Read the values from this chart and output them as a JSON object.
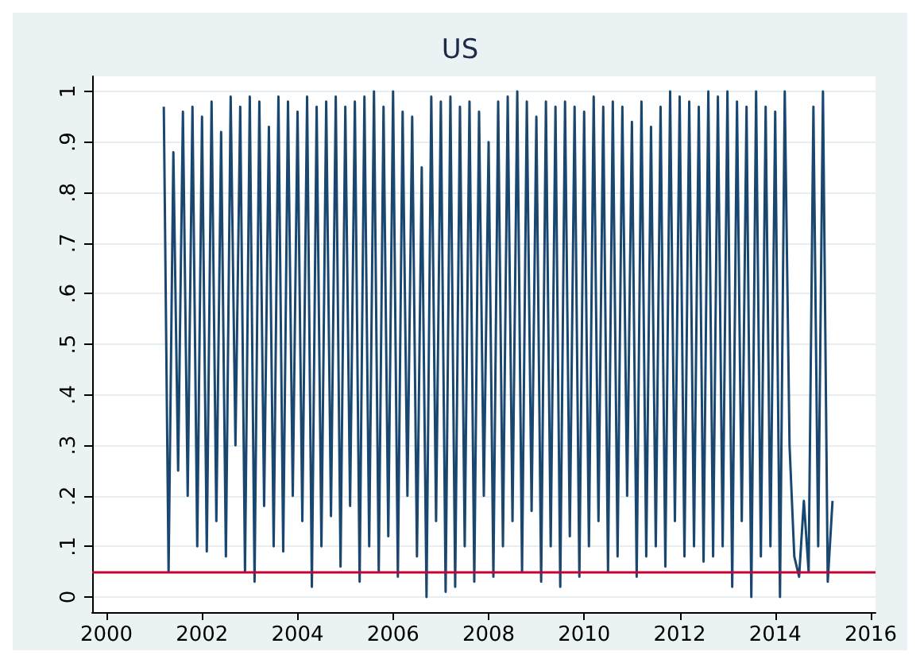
{
  "chart_data": {
    "type": "line",
    "title": "US",
    "x": [
      2001.2,
      2001.3,
      2001.4,
      2001.5,
      2001.6,
      2001.7,
      2001.8,
      2001.9,
      2002.0,
      2002.1,
      2002.2,
      2002.3,
      2002.4,
      2002.5,
      2002.6,
      2002.7,
      2002.8,
      2002.9,
      2003.0,
      2003.1,
      2003.2,
      2003.3,
      2003.4,
      2003.5,
      2003.6,
      2003.7,
      2003.8,
      2003.9,
      2004.0,
      2004.1,
      2004.2,
      2004.3,
      2004.4,
      2004.5,
      2004.6,
      2004.7,
      2004.8,
      2004.9,
      2005.0,
      2005.1,
      2005.2,
      2005.3,
      2005.4,
      2005.5,
      2005.6,
      2005.7,
      2005.8,
      2005.9,
      2006.0,
      2006.1,
      2006.2,
      2006.3,
      2006.4,
      2006.5,
      2006.6,
      2006.7,
      2006.8,
      2006.9,
      2007.0,
      2007.1,
      2007.2,
      2007.3,
      2007.4,
      2007.5,
      2007.6,
      2007.7,
      2007.8,
      2007.9,
      2008.0,
      2008.1,
      2008.2,
      2008.3,
      2008.4,
      2008.5,
      2008.6,
      2008.7,
      2008.8,
      2008.9,
      2009.0,
      2009.1,
      2009.2,
      2009.3,
      2009.4,
      2009.5,
      2009.6,
      2009.7,
      2009.8,
      2009.9,
      2010.0,
      2010.1,
      2010.2,
      2010.3,
      2010.4,
      2010.5,
      2010.6,
      2010.7,
      2010.8,
      2010.9,
      2011.0,
      2011.1,
      2011.2,
      2011.3,
      2011.4,
      2011.5,
      2011.6,
      2011.7,
      2011.8,
      2011.9,
      2012.0,
      2012.1,
      2012.2,
      2012.3,
      2012.4,
      2012.5,
      2012.6,
      2012.7,
      2012.8,
      2012.9,
      2013.0,
      2013.1,
      2013.2,
      2013.3,
      2013.4,
      2013.5,
      2013.6,
      2013.7,
      2013.8,
      2013.9,
      2014.0,
      2014.1,
      2014.2,
      2014.3,
      2014.4,
      2014.5,
      2014.6,
      2014.7,
      2014.8,
      2014.9,
      2015.0,
      2015.1,
      2015.2
    ],
    "series": [
      {
        "color": "#1a476f",
        "values": [
          0.97,
          0.05,
          0.88,
          0.25,
          0.96,
          0.2,
          0.97,
          0.1,
          0.95,
          0.09,
          0.98,
          0.15,
          0.92,
          0.08,
          0.99,
          0.3,
          0.97,
          0.05,
          0.99,
          0.03,
          0.98,
          0.18,
          0.93,
          0.1,
          0.99,
          0.09,
          0.98,
          0.2,
          0.96,
          0.15,
          0.99,
          0.02,
          0.97,
          0.1,
          0.98,
          0.16,
          0.99,
          0.06,
          0.97,
          0.18,
          0.98,
          0.03,
          0.99,
          0.1,
          1.0,
          0.05,
          0.97,
          0.12,
          1.0,
          0.04,
          0.96,
          0.2,
          0.95,
          0.08,
          0.85,
          0.0,
          0.99,
          0.15,
          0.98,
          0.01,
          0.99,
          0.02,
          0.97,
          0.1,
          0.98,
          0.03,
          0.96,
          0.2,
          0.9,
          0.04,
          0.98,
          0.1,
          0.99,
          0.15,
          1.0,
          0.05,
          0.98,
          0.17,
          0.95,
          0.03,
          0.98,
          0.1,
          0.97,
          0.02,
          0.98,
          0.12,
          0.97,
          0.04,
          0.96,
          0.1,
          0.99,
          0.15,
          0.97,
          0.05,
          0.98,
          0.08,
          0.97,
          0.2,
          0.94,
          0.04,
          0.98,
          0.08,
          0.93,
          0.1,
          0.97,
          0.06,
          1.0,
          0.15,
          0.99,
          0.08,
          0.98,
          0.1,
          0.97,
          0.07,
          1.0,
          0.08,
          0.99,
          0.1,
          1.0,
          0.02,
          0.98,
          0.15,
          0.97,
          0.0,
          1.0,
          0.08,
          0.97,
          0.1,
          0.96,
          0.0,
          1.0,
          0.3,
          0.08,
          0.04,
          0.19,
          0.05,
          0.97,
          0.1,
          1.0,
          0.03,
          0.19
        ]
      }
    ],
    "xlim": [
      1999.7,
      2016.1
    ],
    "xticks": [
      2000,
      2002,
      2004,
      2006,
      2008,
      2010,
      2012,
      2014,
      2016
    ],
    "ylim": [
      -0.03,
      1.03
    ],
    "yticks": [
      0,
      {
        "value": 0.1,
        "label": ".1"
      },
      {
        "value": 0.2,
        "label": ".2"
      },
      {
        "value": 0.3,
        "label": ".3"
      },
      {
        "value": 0.4,
        "label": ".4"
      },
      {
        "value": 0.5,
        "label": ".5"
      },
      {
        "value": 0.6,
        "label": ".6"
      },
      {
        "value": 0.7,
        "label": ".7"
      },
      {
        "value": 0.8,
        "label": ".8"
      },
      {
        "value": 0.9,
        "label": ".9"
      },
      1
    ],
    "grid": "y",
    "ref_lines": [
      {
        "axis": "y",
        "value": 0.05,
        "label": null,
        "color": "#c10534"
      }
    ]
  }
}
